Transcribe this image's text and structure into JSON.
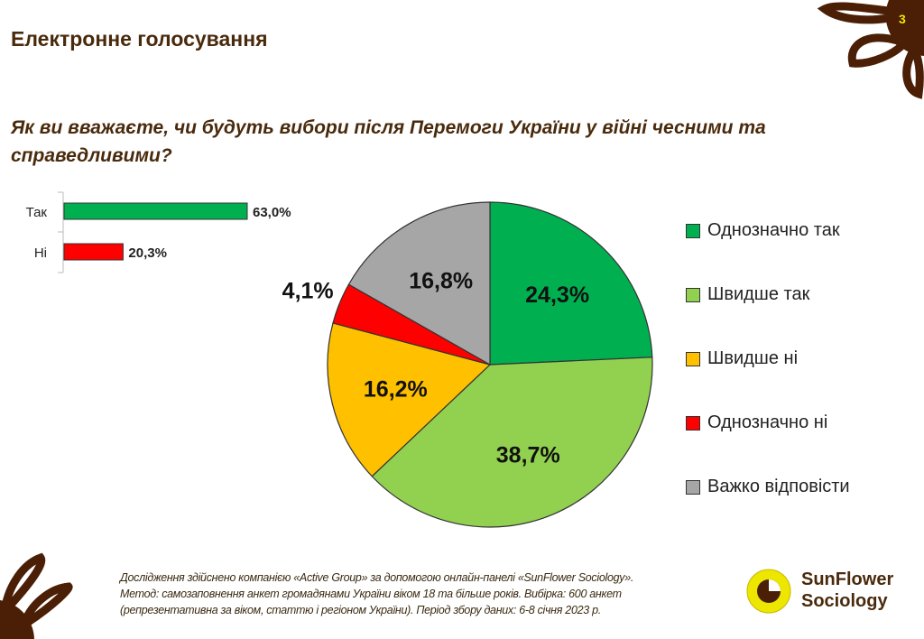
{
  "slide": {
    "title": "Електронне голосування",
    "page_number": "3",
    "question": "Як ви вважаєте, чи будуть вибори після Перемоги України у війні чесними та справедливими?",
    "footer": [
      "Дослідження здійснено компанією «Active Group» за допомогою онлайн-панелі «SunFlower Sociology».",
      "Метод: самозаповнення анкет громадянами України віком 18 та більше років. Вибірка: 600 анкет",
      "(репрезентативна за віком, статтю і регіоном України). Період збору даних: 6-8 січня 2023 р."
    ],
    "logo": {
      "line1": "SunFlower",
      "line2": "Sociology"
    },
    "colors": {
      "brown": "#4a2a0c",
      "yellow": "#f2e600"
    }
  },
  "chart_data": [
    {
      "type": "bar",
      "orientation": "horizontal",
      "categories": [
        "Так",
        "Ні"
      ],
      "values": [
        63.0,
        20.3
      ],
      "labels": [
        "63,0%",
        "20,3%"
      ],
      "colors": [
        "#00b050",
        "#ff0000"
      ],
      "xlim": [
        0,
        100
      ]
    },
    {
      "type": "pie",
      "categories": [
        "Однозначно так",
        "Швидше так",
        "Швидше ні",
        "Однозначно ні",
        "Важко відповісти"
      ],
      "values": [
        24.3,
        38.7,
        16.2,
        4.1,
        16.8
      ],
      "labels": [
        "24,3%",
        "38,7%",
        "16,2%",
        "4,1%",
        "16,8%"
      ],
      "colors": [
        "#00b050",
        "#92d050",
        "#ffc000",
        "#ff0000",
        "#a6a6a6"
      ],
      "start_angle": "top",
      "direction": "clockwise",
      "legend": "right"
    }
  ]
}
